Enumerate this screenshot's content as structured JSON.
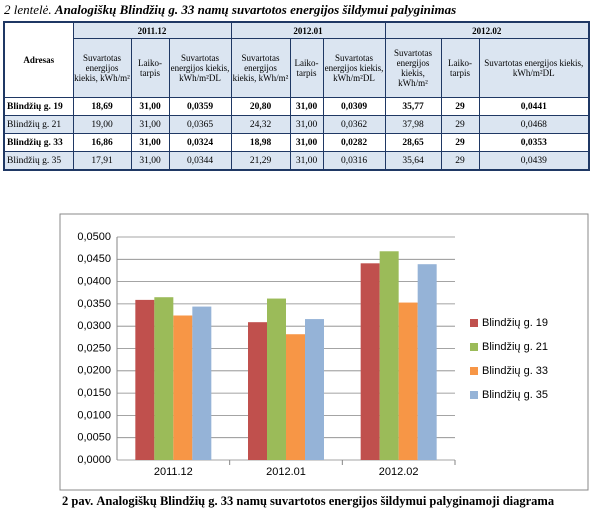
{
  "table_caption": {
    "label": "2 lentelė.",
    "text": "Analogiškų Blindžių g. 33 namų suvartotos energijos šildymui palyginimas"
  },
  "table": {
    "address_header": "Adresas",
    "periods": [
      "2011.12",
      "2012.01",
      "2012.02"
    ],
    "subheaders": [
      "Suvartotas energijos kiekis, kWh/m²",
      "Laiko-tarpis",
      "Suvartotas energijos kiekis, kWh/m²DL"
    ],
    "rows": [
      [
        "Blindžių g. 19",
        "18,69",
        "31,00",
        "0,0359",
        "20,80",
        "31,00",
        "0,0309",
        "35,77",
        "29",
        "0,0441"
      ],
      [
        "Blindžių g. 21",
        "19,00",
        "31,00",
        "0,0365",
        "24,32",
        "31,00",
        "0,0362",
        "37,98",
        "29",
        "0,0468"
      ],
      [
        "Blindžių g. 33",
        "16,86",
        "31,00",
        "0,0324",
        "18,98",
        "31,00",
        "0,0282",
        "28,65",
        "29",
        "0,0353"
      ],
      [
        "Blindžių g. 35",
        "17,91",
        "31,00",
        "0,0344",
        "21,29",
        "31,00",
        "0,0316",
        "35,64",
        "29",
        "0,0439"
      ]
    ]
  },
  "chart_data": {
    "type": "bar",
    "categories": [
      "2011.12",
      "2012.01",
      "2012.02"
    ],
    "series": [
      {
        "name": "Blindžių g. 19",
        "color": "#c0504d",
        "values": [
          0.0359,
          0.0309,
          0.0441
        ]
      },
      {
        "name": "Blindžių g. 21",
        "color": "#9bbb59",
        "values": [
          0.0365,
          0.0362,
          0.0468
        ]
      },
      {
        "name": "Blindžių g. 33",
        "color": "#f79646",
        "values": [
          0.0324,
          0.0282,
          0.0353
        ]
      },
      {
        "name": "Blindžių g. 35",
        "color": "#95b3d7",
        "values": [
          0.0344,
          0.0316,
          0.0439
        ]
      }
    ],
    "ylim": [
      0,
      0.05
    ],
    "yticks": [
      {
        "value": 0,
        "label": "0,0000"
      },
      {
        "value": 0.005,
        "label": "0,0050"
      },
      {
        "value": 0.01,
        "label": "0,0100"
      },
      {
        "value": 0.015,
        "label": "0,0150"
      },
      {
        "value": 0.02,
        "label": "0,0200"
      },
      {
        "value": 0.025,
        "label": "0,0250"
      },
      {
        "value": 0.03,
        "label": "0,0300"
      },
      {
        "value": 0.035,
        "label": "0,0350"
      },
      {
        "value": 0.04,
        "label": "0,0400"
      },
      {
        "value": 0.045,
        "label": "0,0450"
      },
      {
        "value": 0.05,
        "label": "0,0500"
      }
    ],
    "grid": true,
    "legend": "right"
  },
  "figure_caption": {
    "label": "2 pav.",
    "text": "Analogiškų Blindžių g. 33 namų suvartotos energijos šildymui palyginamoji diagrama"
  }
}
